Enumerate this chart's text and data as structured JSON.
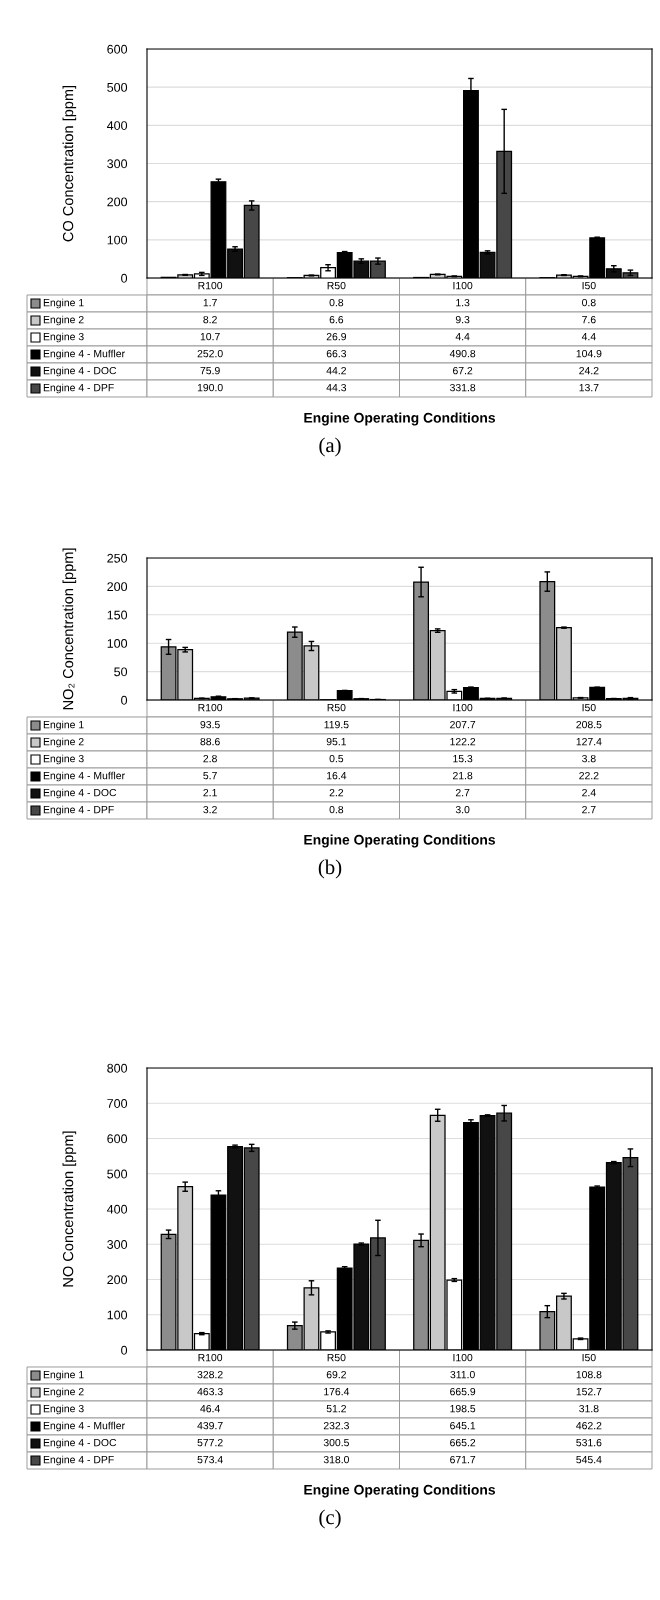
{
  "chart_data": [
    {
      "type": "bar",
      "legend": "bottom left",
      "ylabel": "CO Concentration [ppm]",
      "xlabel": "Engine Operating Conditions",
      "annotations": [
        "(a)"
      ],
      "categories": [
        "R100",
        "R50",
        "I100",
        "I50"
      ],
      "ylim": [
        0,
        600
      ],
      "yticks": [
        0,
        100,
        200,
        300,
        400,
        500,
        600
      ],
      "grid": "y",
      "series": [
        {
          "name": "Engine 1",
          "color": "#8c8c8c",
          "values": [
            1.7,
            0.8,
            1.3,
            0.8
          ],
          "value_labels": [
            "1.7",
            "0.8",
            "1.3",
            "0.8"
          ]
        },
        {
          "name": "Engine 2",
          "color": "#c8c8c8",
          "values": [
            8.2,
            6.6,
            9.3,
            7.6
          ],
          "errors": [
            1,
            1,
            1,
            1
          ],
          "value_labels": [
            "8.2",
            "6.6",
            "9.3",
            "7.6"
          ]
        },
        {
          "name": "Engine 3",
          "color": "#ffffff",
          "values": [
            10.7,
            26.9,
            4.4,
            4.4
          ],
          "errors": [
            4,
            8,
            1,
            1
          ],
          "value_labels": [
            "10.7",
            "26.9",
            "4.4",
            "4.4"
          ]
        },
        {
          "name": "Engine 4 - Muffler",
          "color": "#000000",
          "values": [
            252.0,
            66.3,
            490.8,
            104.9
          ],
          "errors": [
            7,
            3,
            32,
            2
          ],
          "value_labels": [
            "252.0",
            "66.3",
            "490.8",
            "104.9"
          ]
        },
        {
          "name": "Engine 4 - DOC",
          "color": "#111111",
          "values": [
            75.9,
            44.2,
            67.2,
            24.2
          ],
          "errors": [
            6,
            6,
            4,
            8
          ],
          "value_labels": [
            "75.9",
            "44.2",
            "67.2",
            "24.2"
          ]
        },
        {
          "name": "Engine 4 - DPF",
          "color": "#474747",
          "values": [
            190.0,
            44.3,
            331.8,
            13.7
          ],
          "errors": [
            12,
            8,
            110,
            7
          ],
          "value_labels": [
            "190.0",
            "44.3",
            "331.8",
            "13.7"
          ]
        }
      ]
    },
    {
      "type": "bar",
      "legend": "bottom left",
      "ylabel": "NO₂ Concentration [ppm]",
      "xlabel": "Engine Operating Conditions",
      "annotations": [
        "(b)"
      ],
      "categories": [
        "R100",
        "R50",
        "I100",
        "I50"
      ],
      "ylim": [
        0,
        250
      ],
      "yticks": [
        0,
        50,
        100,
        150,
        200,
        250
      ],
      "grid": "y",
      "series": [
        {
          "name": "Engine 1",
          "color": "#8c8c8c",
          "values": [
            93.5,
            119.5,
            207.7,
            208.5
          ],
          "errors": [
            13,
            9,
            26,
            17
          ],
          "value_labels": [
            "93.5",
            "119.5",
            "207.7",
            "208.5"
          ]
        },
        {
          "name": "Engine 2",
          "color": "#c8c8c8",
          "values": [
            88.6,
            95.1,
            122.2,
            127.4
          ],
          "errors": [
            4,
            8,
            3,
            1
          ],
          "value_labels": [
            "88.6",
            "95.1",
            "122.2",
            "127.4"
          ]
        },
        {
          "name": "Engine 3",
          "color": "#ffffff",
          "values": [
            2.8,
            0.5,
            15.3,
            3.8
          ],
          "errors": [
            0.5,
            null,
            3,
            0.5
          ],
          "value_labels": [
            "2.8",
            "0.5",
            "15.3",
            "3.8"
          ]
        },
        {
          "name": "Engine 4 - Muffler",
          "color": "#000000",
          "values": [
            5.7,
            16.4,
            21.8,
            22.2
          ],
          "errors": [
            1,
            0.5,
            1,
            0.3
          ],
          "value_labels": [
            "5.7",
            "16.4",
            "21.8",
            "22.2"
          ]
        },
        {
          "name": "Engine 4 - DOC",
          "color": "#111111",
          "values": [
            2.1,
            2.2,
            2.7,
            2.4
          ],
          "errors": [
            0.3,
            0.3,
            0.3,
            0.3
          ],
          "value_labels": [
            "2.1",
            "2.2",
            "2.7",
            "2.4"
          ]
        },
        {
          "name": "Engine 4 - DPF",
          "color": "#474747",
          "values": [
            3.2,
            0.8,
            3.0,
            2.7
          ],
          "errors": [
            0.5,
            0.3,
            0.5,
            1.5
          ],
          "value_labels": [
            "3.2",
            "0.8",
            "3.0",
            "2.7"
          ]
        }
      ]
    },
    {
      "type": "bar",
      "legend": "bottom left",
      "ylabel": "NO Concentration [ppm]",
      "xlabel": "Engine Operating Conditions",
      "annotations": [
        "(c)"
      ],
      "categories": [
        "R100",
        "R50",
        "I100",
        "I50"
      ],
      "ylim": [
        0,
        800
      ],
      "yticks": [
        0,
        100,
        200,
        300,
        400,
        500,
        600,
        700,
        800
      ],
      "grid": "y",
      "series": [
        {
          "name": "Engine 1",
          "color": "#8c8c8c",
          "values": [
            328.2,
            69.2,
            311.0,
            108.8
          ],
          "errors": [
            12,
            10,
            18,
            17
          ],
          "value_labels": [
            "328.2",
            "69.2",
            "311.0",
            "108.8"
          ]
        },
        {
          "name": "Engine 2",
          "color": "#c8c8c8",
          "values": [
            463.3,
            176.4,
            665.9,
            152.7
          ],
          "errors": [
            13,
            20,
            17,
            8
          ],
          "value_labels": [
            "463.3",
            "176.4",
            "665.9",
            "152.7"
          ]
        },
        {
          "name": "Engine 3",
          "color": "#ffffff",
          "values": [
            46.4,
            51.2,
            198.5,
            31.8
          ],
          "errors": [
            3,
            3,
            4,
            2
          ],
          "value_labels": [
            "46.4",
            "51.2",
            "198.5",
            "31.8"
          ]
        },
        {
          "name": "Engine 4 - Muffler",
          "color": "#000000",
          "values": [
            439.7,
            232.3,
            645.1,
            462.2
          ],
          "errors": [
            12,
            4,
            8,
            3
          ],
          "value_labels": [
            "439.7",
            "232.3",
            "645.1",
            "462.2"
          ]
        },
        {
          "name": "Engine 4 - DOC",
          "color": "#111111",
          "values": [
            577.2,
            300.5,
            665.2,
            531.6
          ],
          "errors": [
            4,
            3,
            2,
            3
          ],
          "value_labels": [
            "577.2",
            "300.5",
            "665.2",
            "531.6"
          ]
        },
        {
          "name": "Engine 4 - DPF",
          "color": "#474747",
          "values": [
            573.4,
            318.0,
            671.7,
            545.4
          ],
          "errors": [
            10,
            50,
            22,
            25
          ],
          "value_labels": [
            "573.4",
            "318.0",
            "671.7",
            "545.4"
          ]
        }
      ]
    }
  ]
}
